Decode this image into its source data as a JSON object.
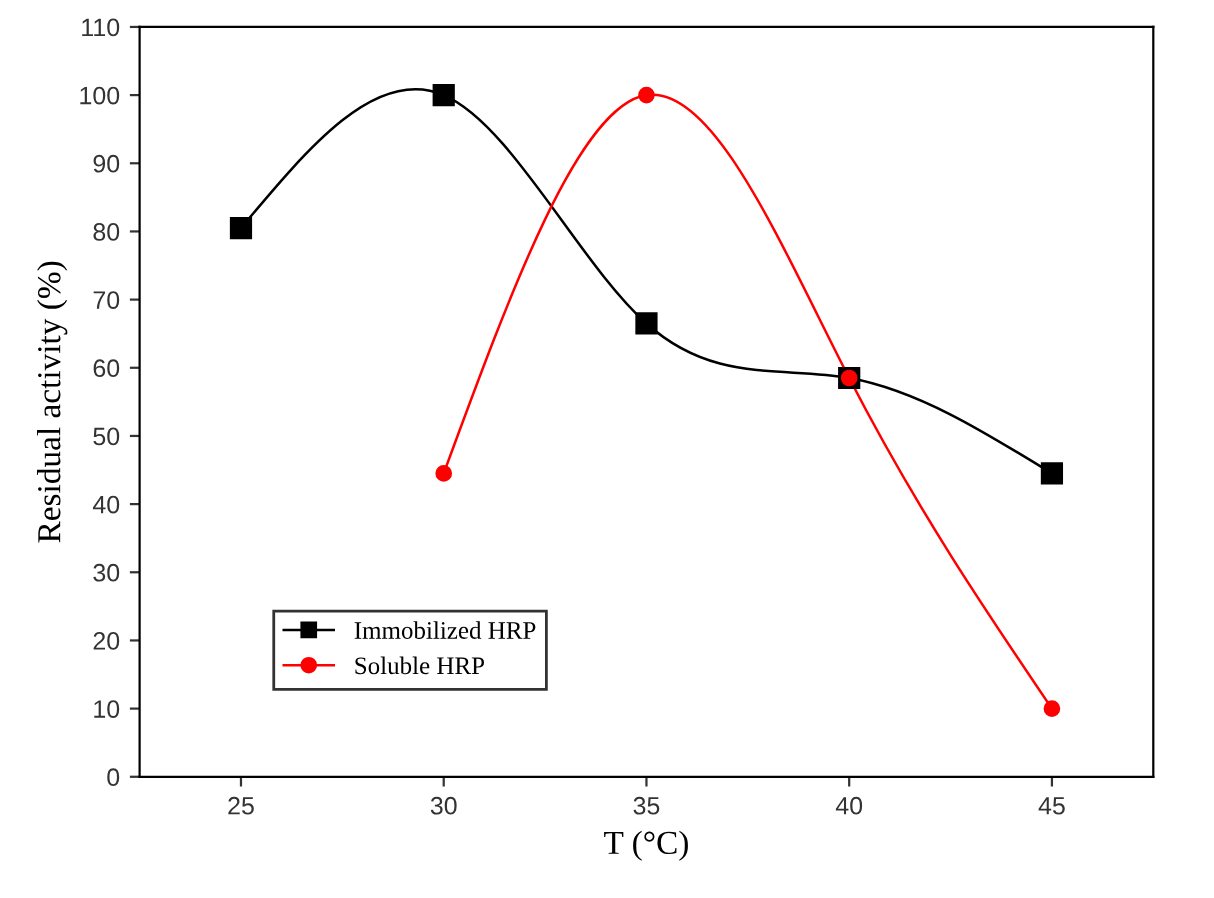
{
  "chart_data": {
    "type": "line",
    "xlabel": "T (°C)",
    "ylabel": "Residual activity (%)",
    "xlim": [
      22.5,
      47.5
    ],
    "xticks": [
      25,
      30,
      35,
      40,
      45
    ],
    "ylim": [
      0,
      110
    ],
    "yticks": [
      0,
      10,
      20,
      30,
      40,
      50,
      60,
      70,
      80,
      90,
      100,
      110
    ],
    "legend": "bottom left",
    "grid": false,
    "line_style": "solid",
    "series": [
      {
        "name": "Immobilized HRP",
        "color": "#000000",
        "marker": "square",
        "x": [
          25,
          30,
          35,
          40,
          45
        ],
        "values": [
          80.5,
          100,
          66.5,
          58.5,
          44.5
        ]
      },
      {
        "name": "Soluble HRP",
        "color": "#ff0000",
        "marker": "circle",
        "x": [
          30,
          35,
          40,
          45
        ],
        "values": [
          44.5,
          100,
          58.5,
          10
        ]
      }
    ]
  }
}
